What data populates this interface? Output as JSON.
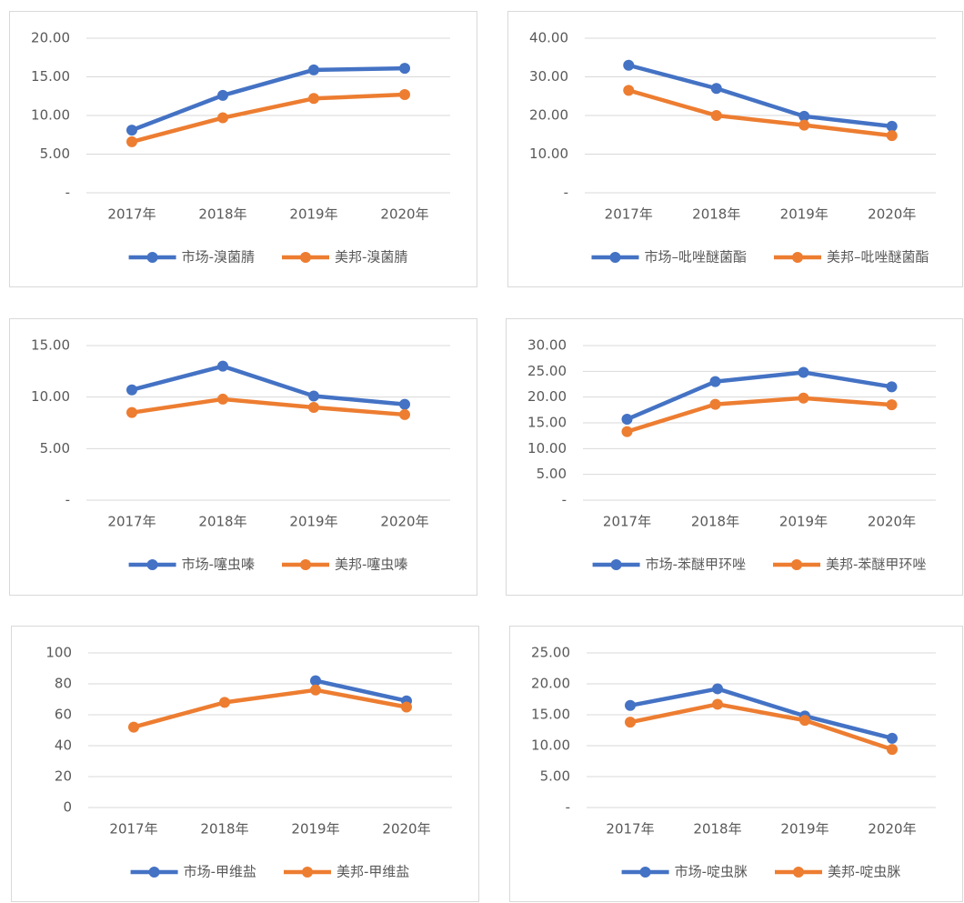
{
  "chart_data": [
    {
      "type": "line",
      "categories": [
        "2017年",
        "2018年",
        "2019年",
        "2020年"
      ],
      "series": [
        {
          "name": "市场-溴菌腈",
          "color": "#4472c4",
          "values": [
            8.1,
            12.6,
            15.9,
            16.1
          ]
        },
        {
          "name": "美邦-溴菌腈",
          "color": "#ed7d31",
          "values": [
            6.6,
            9.7,
            12.2,
            12.7
          ]
        }
      ],
      "ylim": [
        0,
        20
      ],
      "yticks": [
        {
          "value": 0,
          "label": "-"
        },
        {
          "value": 5,
          "label": "5.00"
        },
        {
          "value": 10,
          "label": "10.00"
        },
        {
          "value": 15,
          "label": "15.00"
        },
        {
          "value": 20,
          "label": "20.00"
        }
      ],
      "grid": true,
      "legend": "bottom"
    },
    {
      "type": "line",
      "categories": [
        "2017年",
        "2018年",
        "2019年",
        "2020年"
      ],
      "series": [
        {
          "name": "市场–吡唑醚菌酯",
          "color": "#4472c4",
          "values": [
            33,
            27,
            19.8,
            17.2
          ]
        },
        {
          "name": "美邦–吡唑醚菌酯",
          "color": "#ed7d31",
          "values": [
            26.5,
            20,
            17.5,
            14.8
          ]
        }
      ],
      "ylim": [
        0,
        40
      ],
      "yticks": [
        {
          "value": 0,
          "label": "-"
        },
        {
          "value": 10,
          "label": "10.00"
        },
        {
          "value": 20,
          "label": "20.00"
        },
        {
          "value": 30,
          "label": "30.00"
        },
        {
          "value": 40,
          "label": "40.00"
        }
      ],
      "grid": true,
      "legend": "bottom"
    },
    {
      "type": "line",
      "categories": [
        "2017年",
        "2018年",
        "2019年",
        "2020年"
      ],
      "series": [
        {
          "name": "市场-噻虫嗪",
          "color": "#4472c4",
          "values": [
            10.7,
            13,
            10.1,
            9.3
          ]
        },
        {
          "name": "美邦-噻虫嗪",
          "color": "#ed7d31",
          "values": [
            8.5,
            9.8,
            9,
            8.3
          ]
        }
      ],
      "ylim": [
        0,
        15
      ],
      "yticks": [
        {
          "value": 0,
          "label": "-"
        },
        {
          "value": 5,
          "label": "5.00"
        },
        {
          "value": 10,
          "label": "10.00"
        },
        {
          "value": 15,
          "label": "15.00"
        }
      ],
      "grid": true,
      "legend": "bottom"
    },
    {
      "type": "line",
      "categories": [
        "2017年",
        "2018年",
        "2019年",
        "2020年"
      ],
      "series": [
        {
          "name": "市场-苯醚甲环唑",
          "color": "#4472c4",
          "values": [
            15.7,
            23,
            24.8,
            22
          ]
        },
        {
          "name": "美邦-苯醚甲环唑",
          "color": "#ed7d31",
          "values": [
            13.3,
            18.6,
            19.8,
            18.5
          ]
        }
      ],
      "ylim": [
        0,
        30
      ],
      "yticks": [
        {
          "value": 0,
          "label": "-"
        },
        {
          "value": 5,
          "label": "5.00"
        },
        {
          "value": 10,
          "label": "10.00"
        },
        {
          "value": 15,
          "label": "15.00"
        },
        {
          "value": 20,
          "label": "20.00"
        },
        {
          "value": 25,
          "label": "25.00"
        },
        {
          "value": 30,
          "label": "30.00"
        }
      ],
      "grid": true,
      "legend": "bottom"
    },
    {
      "type": "line",
      "categories": [
        "2017年",
        "2018年",
        "2019年",
        "2020年"
      ],
      "series": [
        {
          "name": "市场-甲维盐",
          "color": "#4472c4",
          "values": [
            null,
            null,
            82,
            69
          ]
        },
        {
          "name": "美邦-甲维盐",
          "color": "#ed7d31",
          "values": [
            52,
            68,
            76,
            65
          ]
        }
      ],
      "ylim": [
        0,
        100
      ],
      "yticks": [
        0,
        20,
        40,
        60,
        80,
        100
      ],
      "grid": true,
      "legend": "bottom"
    },
    {
      "type": "line",
      "categories": [
        "2017年",
        "2018年",
        "2019年",
        "2020年"
      ],
      "series": [
        {
          "name": "市场-啶虫脒",
          "color": "#4472c4",
          "values": [
            16.5,
            19.2,
            14.8,
            11.2
          ]
        },
        {
          "name": "美邦-啶虫脒",
          "color": "#ed7d31",
          "values": [
            13.8,
            16.7,
            14.1,
            9.4
          ]
        }
      ],
      "ylim": [
        0,
        25
      ],
      "yticks": [
        {
          "value": 0,
          "label": "-"
        },
        {
          "value": 5,
          "label": "5.00"
        },
        {
          "value": 10,
          "label": "10.00"
        },
        {
          "value": 15,
          "label": "15.00"
        },
        {
          "value": 20,
          "label": "20.00"
        },
        {
          "value": 25,
          "label": "25.00"
        }
      ],
      "grid": true,
      "legend": "bottom"
    }
  ]
}
